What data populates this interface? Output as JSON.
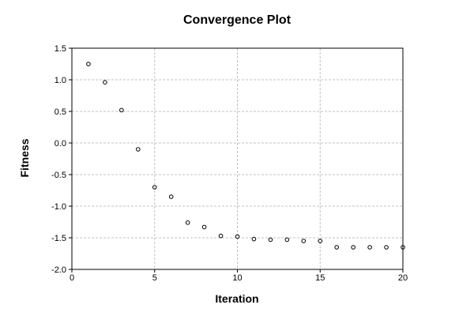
{
  "chart_data": {
    "type": "scatter",
    "title": "Convergence Plot",
    "xlabel": "Iteration",
    "ylabel": "Fitness",
    "xlim": [
      0,
      20
    ],
    "ylim": [
      -2.0,
      1.5
    ],
    "xticks": [
      0,
      5,
      10,
      15,
      20
    ],
    "xtick_labels": [
      "0",
      "5",
      "10",
      "15",
      "20"
    ],
    "yticks": [
      -2.0,
      -1.5,
      -1.0,
      -0.5,
      0.0,
      0.5,
      1.0,
      1.5
    ],
    "ytick_labels": [
      "-2.0",
      "-1.5",
      "-1.0",
      "-0.5",
      "0.0",
      "0.5",
      "1.0",
      "1.5"
    ],
    "grid": true,
    "legend": "none",
    "series": [
      {
        "x": [
          1,
          2,
          3,
          4,
          5,
          6,
          7,
          8,
          9,
          10,
          11,
          12,
          13,
          14,
          15,
          16,
          17,
          18,
          19,
          20
        ],
        "y": [
          1.25,
          0.96,
          0.52,
          -0.1,
          -0.7,
          -0.85,
          -1.26,
          -1.33,
          -1.47,
          -1.48,
          -1.52,
          -1.53,
          -1.53,
          -1.55,
          -1.55,
          -1.65,
          -1.65,
          -1.65,
          -1.65,
          -1.65
        ],
        "marker": "open-circle",
        "color": "#000000"
      }
    ]
  }
}
